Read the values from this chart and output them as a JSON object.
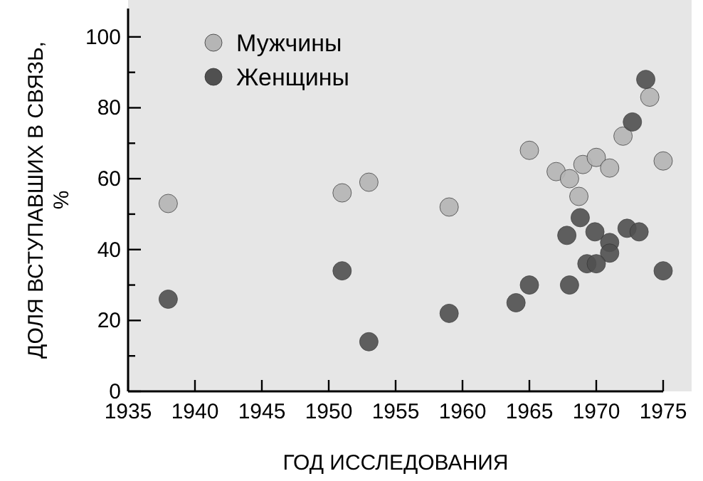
{
  "chart_data": {
    "type": "scatter",
    "xlabel": "ГОД ИССЛЕДОВАНИЯ",
    "ylabel": "ДОЛЯ ВСТУПАВШИХ В СВЯЗЬ,\n%",
    "xlim": [
      1935,
      1975
    ],
    "ylim": [
      0,
      108
    ],
    "xticks": [
      1935,
      1940,
      1945,
      1950,
      1955,
      1960,
      1965,
      1970,
      1975
    ],
    "yticks": [
      0,
      {
        "value": 10,
        "label": null
      },
      20,
      {
        "value": 30,
        "label": null
      },
      40,
      {
        "value": 50,
        "label": null
      },
      60,
      {
        "value": 70,
        "label": null
      },
      80,
      {
        "value": 90,
        "label": null
      },
      100
    ],
    "legend": "top left",
    "marker": "circle",
    "series": [
      {
        "name": "Мужчины",
        "color": "#b5b5b5",
        "x": [
          1938,
          1951,
          1953,
          1959,
          1965,
          1967,
          1968,
          1969,
          1970,
          1971,
          1968.7,
          1972,
          1974,
          1975
        ],
        "values": [
          53,
          56,
          59,
          52,
          68,
          62,
          60,
          64,
          66,
          63,
          55,
          72,
          83,
          65
        ]
      },
      {
        "name": "Женщины",
        "color": "#505050",
        "x": [
          1938,
          1951,
          1953,
          1959,
          1964,
          1965,
          1968,
          1968.8,
          1967.8,
          1969.9,
          1971,
          1971,
          1969.3,
          1970,
          1972.3,
          1973.2,
          1972.7,
          1973.7,
          1975
        ],
        "values": [
          26,
          34,
          14,
          22,
          25,
          30,
          30,
          49,
          44,
          45,
          42,
          39,
          36,
          36,
          46,
          45,
          76,
          88,
          34
        ]
      }
    ]
  }
}
